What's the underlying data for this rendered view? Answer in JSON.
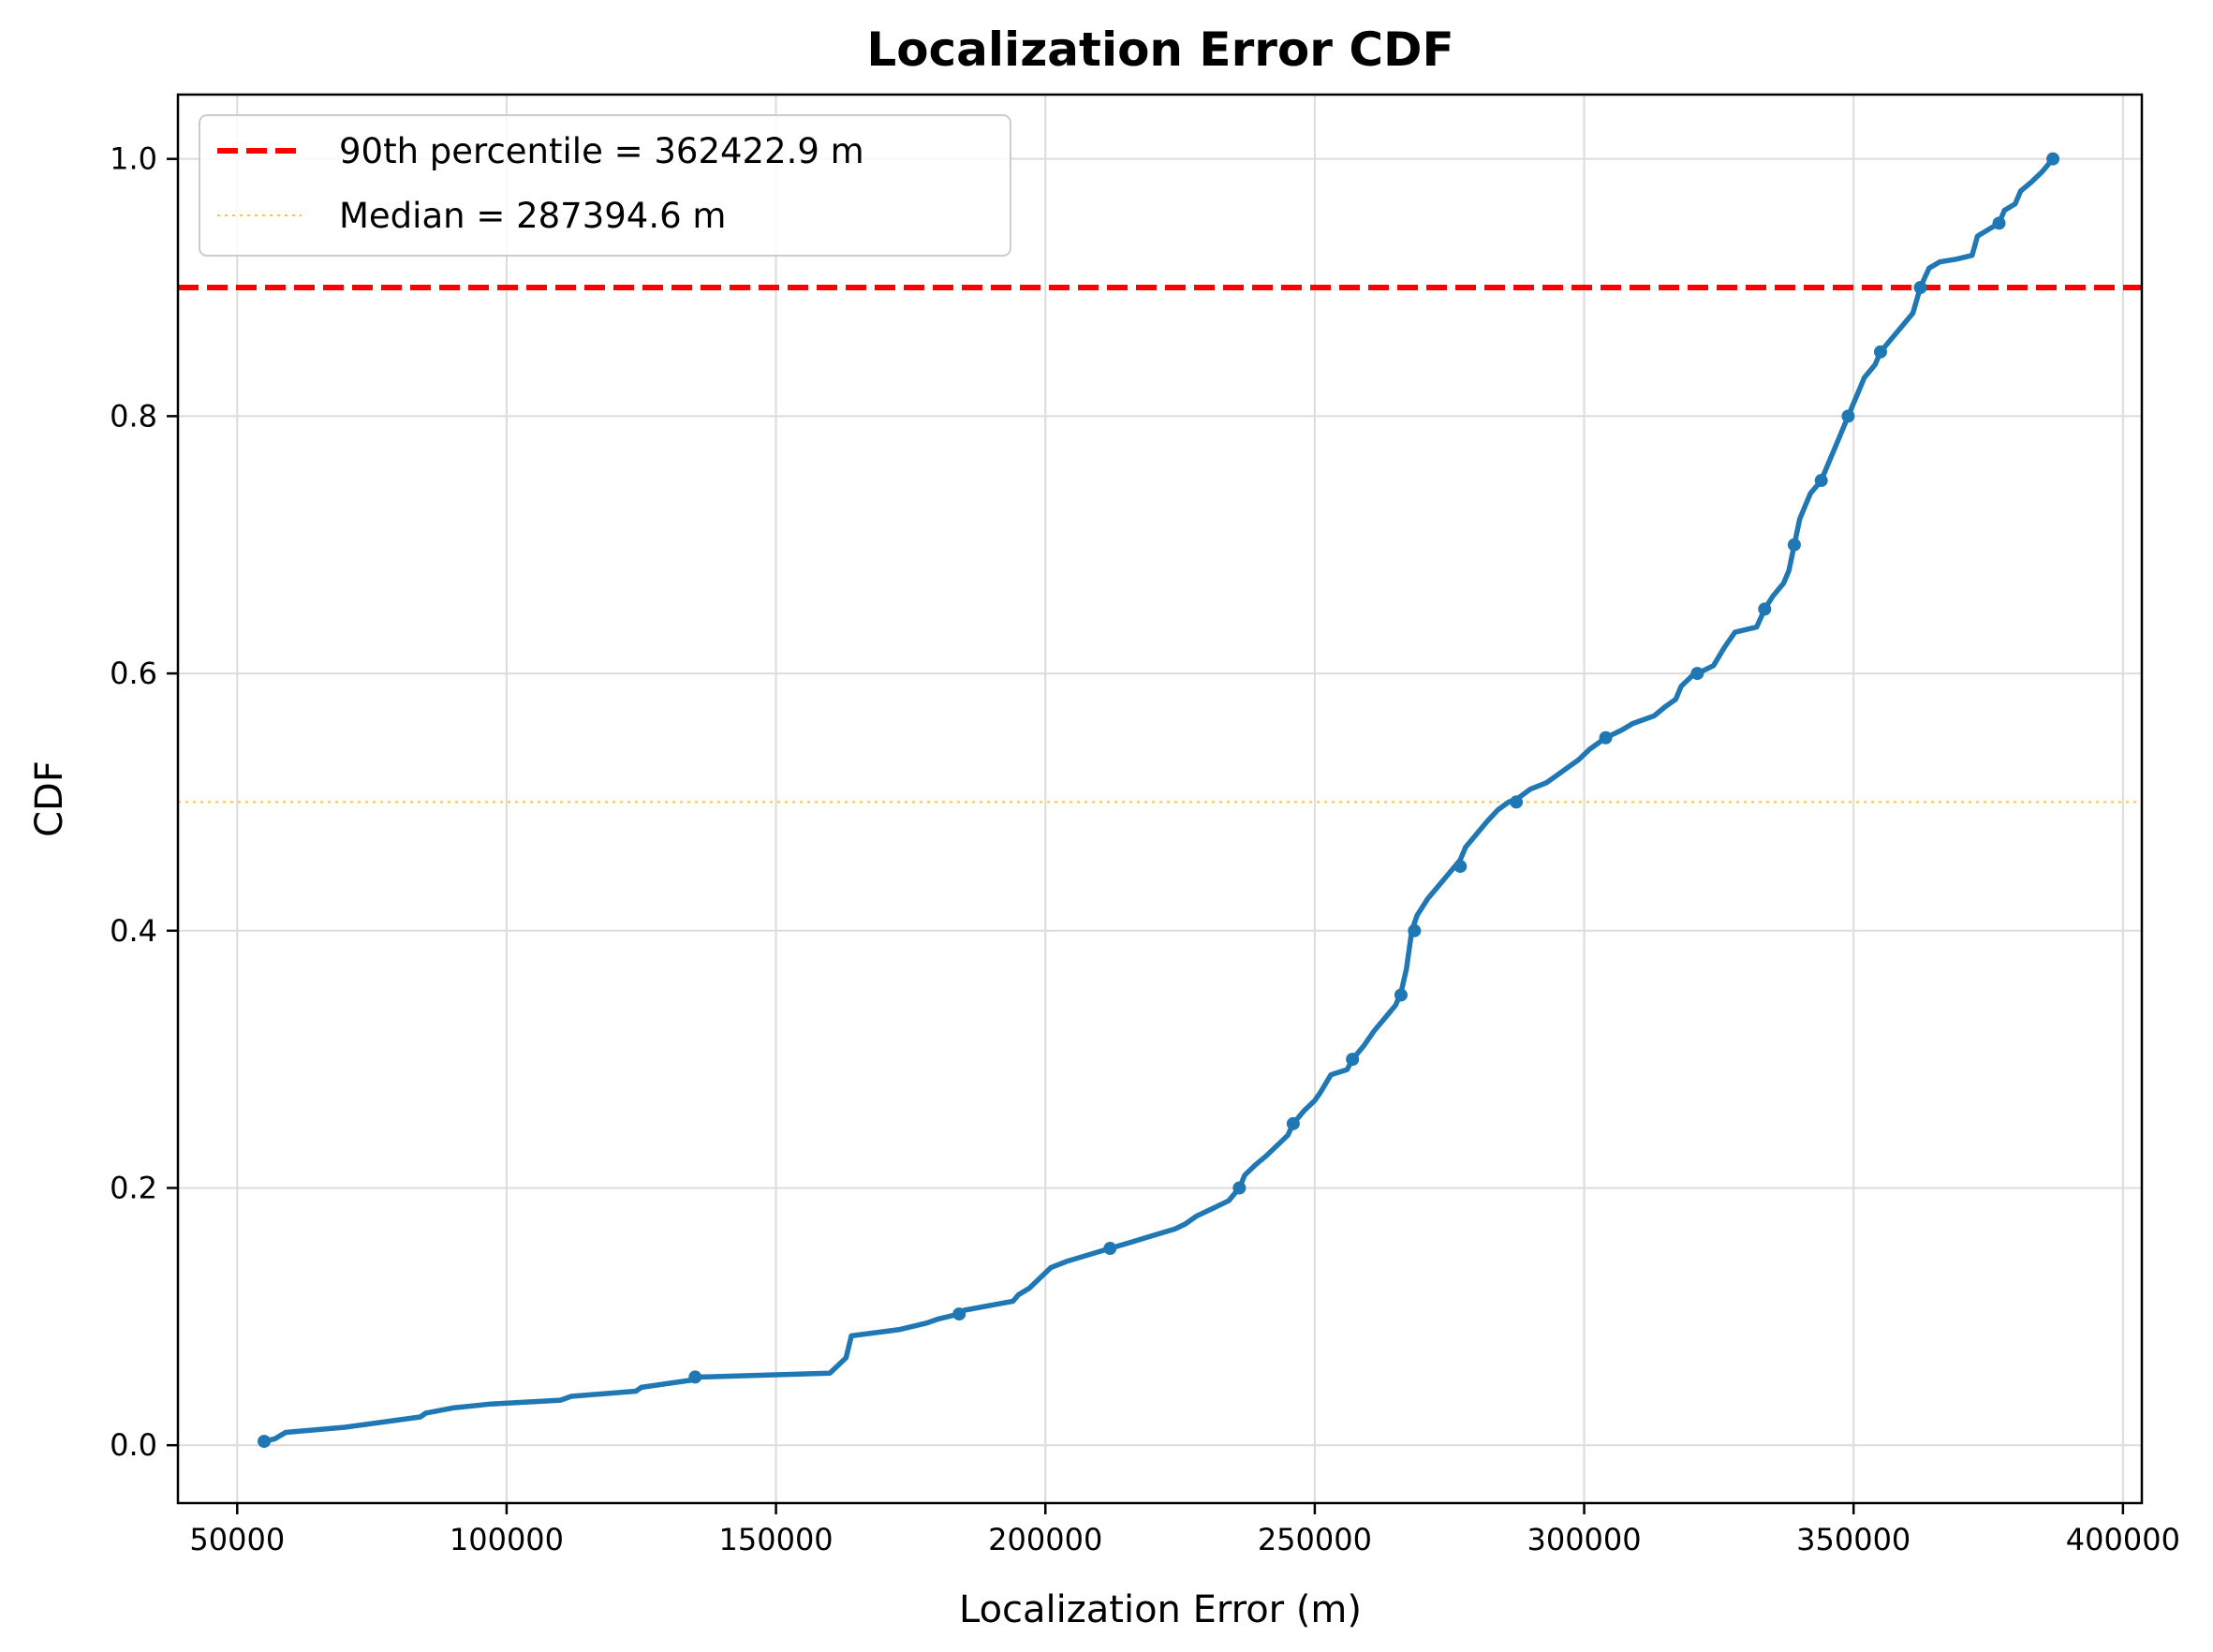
{
  "chart_data": {
    "type": "line",
    "title": "Localization Error CDF",
    "xlabel": "Localization Error (m)",
    "ylabel": "CDF",
    "xlim": [
      39000,
      403500
    ],
    "ylim": [
      -0.045,
      1.05
    ],
    "xticks": [
      50000,
      100000,
      150000,
      200000,
      250000,
      300000,
      350000,
      400000
    ],
    "xtick_labels": [
      "50000",
      "100000",
      "150000",
      "200000",
      "250000",
      "300000",
      "350000",
      "400000"
    ],
    "yticks": [
      0.0,
      0.2,
      0.4,
      0.6,
      0.8,
      1.0
    ],
    "ytick_labels": [
      "0.0",
      "0.2",
      "0.4",
      "0.6",
      "0.8",
      "1.0"
    ],
    "grid": true,
    "legend_position": "top-left",
    "series": [
      {
        "name": "",
        "color": "#1f77b4",
        "style": "line-with-markers",
        "x": [
          55000,
          57000,
          59000,
          70000,
          84000,
          85000,
          90000,
          97000,
          110000,
          112000,
          124000,
          125000,
          135000,
          136000,
          160000,
          161000,
          163000,
          164000,
          173000,
          178000,
          180000,
          184000,
          185000,
          194000,
          195000,
          197000,
          199000,
          201000,
          204000,
          212000,
          216000,
          220000,
          224000,
          226000,
          228000,
          231000,
          234000,
          236000,
          237000,
          239000,
          241000,
          243000,
          245000,
          246000,
          248000,
          250000,
          251000,
          253000,
          256000,
          257000,
          259000,
          261000,
          263000,
          265000,
          266000,
          267000,
          268000,
          269000,
          271000,
          273000,
          275000,
          277000,
          278000,
          280000,
          282000,
          284000,
          286000,
          287400,
          290000,
          293000,
          295000,
          297000,
          299000,
          301000,
          304000,
          307000,
          309000,
          313000,
          315000,
          317000,
          318000,
          320000,
          321000,
          324000,
          326000,
          328000,
          332000,
          333500,
          335000,
          337000,
          338000,
          339000,
          340000,
          341000,
          342000,
          344000,
          345000,
          347000,
          348000,
          349000,
          350000,
          351000,
          352000,
          354000,
          355000,
          357000,
          359000,
          361000,
          362400,
          364000,
          366000,
          369000,
          372000,
          373000,
          375000,
          377000,
          378000,
          380000,
          381000,
          383000,
          385000,
          386000,
          387000
        ],
        "y": [
          0.003,
          0.005,
          0.01,
          0.014,
          0.022,
          0.025,
          0.029,
          0.032,
          0.035,
          0.038,
          0.042,
          0.045,
          0.051,
          0.053,
          0.056,
          0.06,
          0.068,
          0.085,
          0.09,
          0.095,
          0.098,
          0.102,
          0.105,
          0.112,
          0.117,
          0.122,
          0.13,
          0.138,
          0.143,
          0.153,
          0.158,
          0.163,
          0.168,
          0.172,
          0.178,
          0.184,
          0.19,
          0.2,
          0.21,
          0.218,
          0.225,
          0.233,
          0.241,
          0.25,
          0.26,
          0.268,
          0.274,
          0.288,
          0.292,
          0.3,
          0.31,
          0.322,
          0.332,
          0.342,
          0.352,
          0.37,
          0.4,
          0.412,
          0.425,
          0.435,
          0.445,
          0.455,
          0.465,
          0.475,
          0.485,
          0.494,
          0.5,
          0.502,
          0.51,
          0.515,
          0.521,
          0.527,
          0.533,
          0.541,
          0.55,
          0.556,
          0.561,
          0.567,
          0.574,
          0.58,
          0.59,
          0.598,
          0.6,
          0.606,
          0.62,
          0.632,
          0.636,
          0.65,
          0.66,
          0.67,
          0.68,
          0.7,
          0.72,
          0.73,
          0.74,
          0.75,
          0.76,
          0.78,
          0.79,
          0.8,
          0.81,
          0.82,
          0.83,
          0.84,
          0.85,
          0.86,
          0.87,
          0.88,
          0.9,
          0.915,
          0.92,
          0.922,
          0.925,
          0.94,
          0.945,
          0.95,
          0.96,
          0.965,
          0.975,
          0.982,
          0.99,
          0.995,
          1.0
        ],
        "markers_x": [
          55000,
          135000,
          184000,
          212000,
          236000,
          246000,
          257000,
          266000,
          268500,
          277000,
          287400,
          304000,
          321000,
          333500,
          339000,
          344000,
          349000,
          355000,
          362400,
          377000,
          387000
        ],
        "markers_y": [
          0.003,
          0.053,
          0.102,
          0.153,
          0.2,
          0.25,
          0.3,
          0.35,
          0.4,
          0.45,
          0.5,
          0.55,
          0.6,
          0.65,
          0.7,
          0.75,
          0.8,
          0.85,
          0.9,
          0.95,
          1.0
        ]
      }
    ],
    "reference_lines": [
      {
        "label": "90th percentile = 362422.9 m",
        "y": 0.9,
        "color": "#ff0000",
        "style": "dashed"
      },
      {
        "label": "Median = 287394.6 m",
        "y": 0.5,
        "color": "#ffa500",
        "style": "dotted"
      }
    ]
  }
}
